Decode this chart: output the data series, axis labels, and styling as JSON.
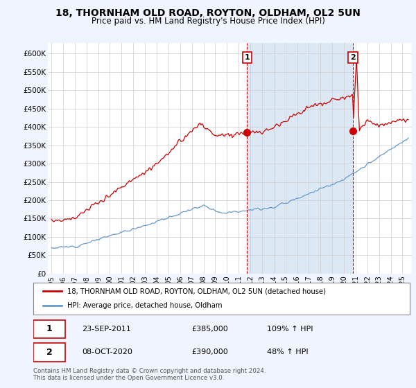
{
  "title": "18, THORNHAM OLD ROAD, ROYTON, OLDHAM, OL2 5UN",
  "subtitle": "Price paid vs. HM Land Registry's House Price Index (HPI)",
  "title_fontsize": 10,
  "subtitle_fontsize": 8.5,
  "ylabel_ticks": [
    "£0",
    "£50K",
    "£100K",
    "£150K",
    "£200K",
    "£250K",
    "£300K",
    "£350K",
    "£400K",
    "£450K",
    "£500K",
    "£550K",
    "£600K"
  ],
  "ytick_values": [
    0,
    50000,
    100000,
    150000,
    200000,
    250000,
    300000,
    350000,
    400000,
    450000,
    500000,
    550000,
    600000
  ],
  "ylim": [
    0,
    630000
  ],
  "xlim_start": 1994.7,
  "xlim_end": 2025.8,
  "house_color": "#cc0000",
  "hpi_color": "#6699cc",
  "sale1_x": 2011.73,
  "sale1_y": 385000,
  "sale2_x": 2020.77,
  "sale2_y": 390000,
  "shade_color": "#dde8f5",
  "legend_house": "18, THORNHAM OLD ROAD, ROYTON, OLDHAM, OL2 5UN (detached house)",
  "legend_hpi": "HPI: Average price, detached house, Oldham",
  "annot1_label": "1",
  "annot1_date": "23-SEP-2011",
  "annot1_price": "£385,000",
  "annot1_hpi": "109% ↑ HPI",
  "annot2_label": "2",
  "annot2_date": "08-OCT-2020",
  "annot2_price": "£390,000",
  "annot2_hpi": "48% ↑ HPI",
  "footer": "Contains HM Land Registry data © Crown copyright and database right 2024.\nThis data is licensed under the Open Government Licence v3.0.",
  "bg_color": "#f0f4ff",
  "plot_bg_color": "#ffffff"
}
